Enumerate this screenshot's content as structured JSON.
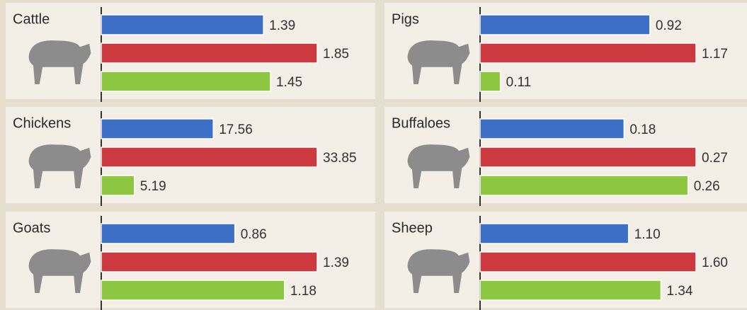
{
  "chart_data": [
    {
      "type": "bar",
      "title": "Cattle",
      "values": [
        1.39,
        1.85,
        1.45
      ],
      "value_labels": [
        "1.39",
        "1.85",
        "1.45"
      ],
      "colors": [
        "#3d6fc6",
        "#cc3a3f",
        "#8dc641"
      ]
    },
    {
      "type": "bar",
      "title": "Pigs",
      "values": [
        0.92,
        1.17,
        0.11
      ],
      "value_labels": [
        "0.92",
        "1.17",
        "0.11"
      ],
      "colors": [
        "#3d6fc6",
        "#cc3a3f",
        "#8dc641"
      ]
    },
    {
      "type": "bar",
      "title": "Chickens",
      "values": [
        17.56,
        33.85,
        5.19
      ],
      "value_labels": [
        "17.56",
        "33.85",
        "5.19"
      ],
      "colors": [
        "#3d6fc6",
        "#cc3a3f",
        "#8dc641"
      ]
    },
    {
      "type": "bar",
      "title": "Buffaloes",
      "values": [
        0.18,
        0.27,
        0.26
      ],
      "value_labels": [
        "0.18",
        "0.27",
        "0.26"
      ],
      "colors": [
        "#3d6fc6",
        "#cc3a3f",
        "#8dc641"
      ]
    },
    {
      "type": "bar",
      "title": "Goats",
      "values": [
        0.86,
        1.39,
        1.18
      ],
      "value_labels": [
        "0.86",
        "1.39",
        "1.18"
      ],
      "colors": [
        "#3d6fc6",
        "#cc3a3f",
        "#8dc641"
      ]
    },
    {
      "type": "bar",
      "title": "Sheep",
      "values": [
        1.1,
        1.6,
        1.34
      ],
      "value_labels": [
        "1.10",
        "1.60",
        "1.34"
      ],
      "colors": [
        "#3d6fc6",
        "#cc3a3f",
        "#8dc641"
      ]
    }
  ]
}
